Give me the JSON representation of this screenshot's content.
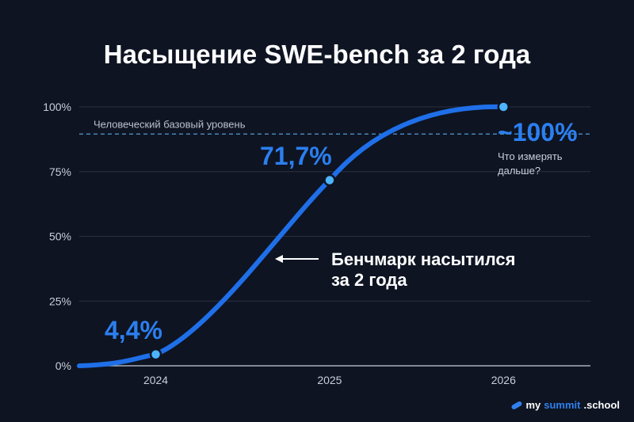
{
  "chart_data": {
    "type": "line",
    "title": "Насыщение SWE-bench за 2 года",
    "x_ticks": [
      "2024",
      "2025",
      "2026"
    ],
    "y_ticks": [
      "0%",
      "25%",
      "50%",
      "75%",
      "100%"
    ],
    "ylim": [
      0,
      100
    ],
    "xlim": [
      2023.56,
      2026.5
    ],
    "grid": true,
    "series": [
      {
        "color": "#1f6fe8",
        "points": [
          {
            "x": 2024.0,
            "y": 4.4,
            "label": "4,4%"
          },
          {
            "x": 2025.0,
            "y": 71.7,
            "label": "71,7%"
          },
          {
            "x": 2026.0,
            "y": 100,
            "label": "~100%"
          }
        ]
      }
    ],
    "baseline": {
      "y": 89.5,
      "label": "Человеческий базовый уровень",
      "color": "#4a90c8"
    },
    "annotations": {
      "end_note_line1": "Что измерять",
      "end_note_line2": "дальше?",
      "arrow_text_line1": "Бенчмарк насытился",
      "arrow_text_line2": "за 2 года"
    }
  },
  "branding": {
    "prefix": "my",
    "accent": "summit",
    "suffix": ".school"
  }
}
